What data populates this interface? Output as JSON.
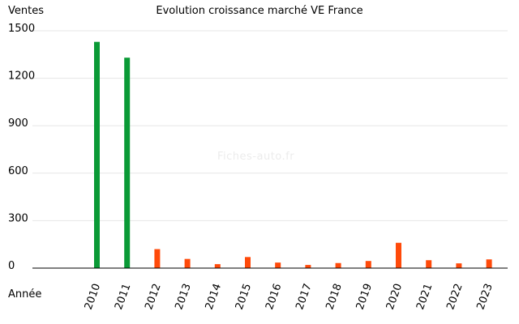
{
  "chart_data": {
    "type": "bar",
    "title": "Evolution croissance marché VE France",
    "ylabel": "Ventes",
    "xlabel": "Année",
    "watermark": "Fiches-auto.fr",
    "categories": [
      "2010",
      "2011",
      "2012",
      "2013",
      "2014",
      "2015",
      "2016",
      "2017",
      "2018",
      "2019",
      "2020",
      "2021",
      "2022",
      "2023"
    ],
    "values": [
      1430,
      1330,
      120,
      58,
      25,
      70,
      35,
      20,
      32,
      45,
      160,
      50,
      30,
      55
    ],
    "ylim": [
      0,
      1500
    ],
    "yticks": [
      0,
      300,
      600,
      900,
      1200,
      1500
    ],
    "grid": true,
    "colors": {
      "highlight": "#0a9a36",
      "normal": "#ff4a0a",
      "grid": "#e6e6e6",
      "axis": "#000000"
    },
    "highlight_categories": [
      "2010",
      "2011"
    ]
  }
}
